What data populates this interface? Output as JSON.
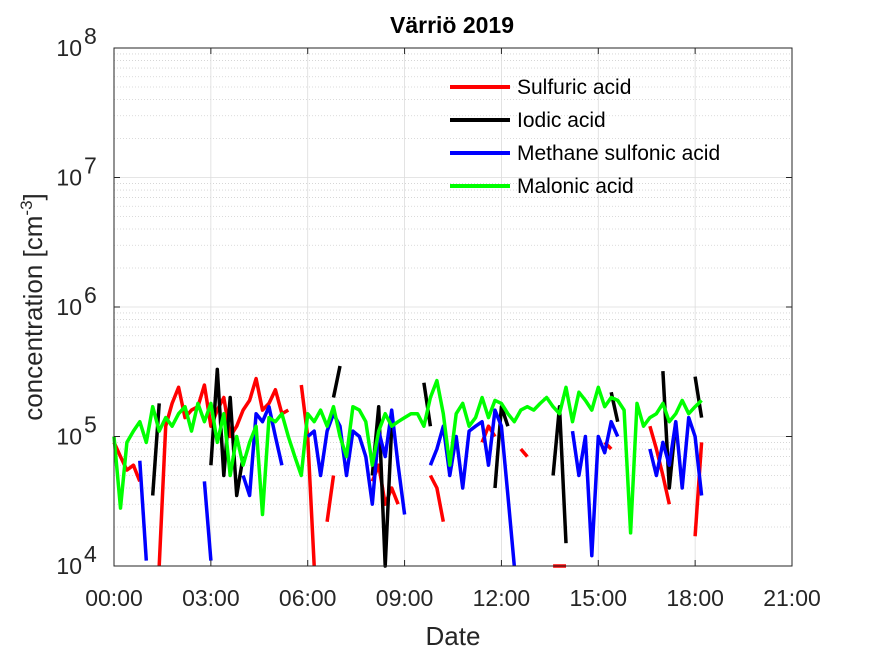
{
  "chart_data": {
    "type": "line",
    "title": "Värriö 2019",
    "xlabel": "Date",
    "ylabel_main": "concentration [cm",
    "ylabel_sup": "-3",
    "ylabel_close": "]",
    "y_scale": "log",
    "xlim": [
      0,
      21
    ],
    "ylim": [
      10000,
      100000000
    ],
    "grid": true,
    "minor_grid": true,
    "legend_position": "top-right",
    "x_ticks": [
      {
        "value": 0,
        "label": "00:00"
      },
      {
        "value": 3,
        "label": "03:00"
      },
      {
        "value": 6,
        "label": "06:00"
      },
      {
        "value": 9,
        "label": "09:00"
      },
      {
        "value": 12,
        "label": "12:00"
      },
      {
        "value": 15,
        "label": "15:00"
      },
      {
        "value": 18,
        "label": "18:00"
      },
      {
        "value": 21,
        "label": "21:00"
      }
    ],
    "y_ticks": [
      {
        "exp": 4,
        "base": "10",
        "sup": "4"
      },
      {
        "exp": 5,
        "base": "10",
        "sup": "5"
      },
      {
        "exp": 6,
        "base": "10",
        "sup": "6"
      },
      {
        "exp": 7,
        "base": "10",
        "sup": "7"
      },
      {
        "exp": 8,
        "base": "10",
        "sup": "8"
      }
    ],
    "series": [
      {
        "name": "Sulfuric acid",
        "color": "#ff0000",
        "x": [
          0.0,
          0.2,
          0.4,
          0.6,
          0.8,
          1.0,
          1.2,
          1.4,
          1.6,
          1.8,
          2.0,
          2.2,
          2.4,
          2.6,
          2.8,
          3.0,
          3.2,
          3.4,
          3.6,
          3.8,
          4.0,
          4.2,
          4.4,
          4.6,
          4.8,
          5.0,
          5.2,
          5.4,
          5.6,
          5.8,
          6.0,
          6.2,
          6.4,
          6.6,
          6.8,
          7.0,
          7.2,
          7.4,
          7.6,
          7.8,
          8.0,
          8.2,
          8.4,
          8.6,
          8.8,
          9.0,
          9.2,
          9.4,
          9.6,
          9.8,
          10.0,
          10.2,
          10.4,
          10.6,
          10.8,
          11.0,
          11.2,
          11.4,
          11.6,
          11.8,
          12.0,
          12.2,
          12.4,
          12.6,
          12.8,
          13.0,
          13.2,
          13.4,
          13.6,
          13.8,
          14.0,
          14.2,
          14.4,
          14.6,
          14.8,
          15.0,
          15.2,
          15.4,
          15.6,
          15.8,
          16.0,
          16.2,
          16.4,
          16.6,
          16.8,
          17.0,
          17.2,
          17.4,
          17.6,
          17.8,
          18.0,
          18.2
        ],
        "y": [
          90000,
          70000,
          55000,
          60000,
          45000,
          null,
          null,
          9000,
          120000,
          180000,
          240000,
          140000,
          160000,
          170000,
          250000,
          120000,
          160000,
          200000,
          100000,
          120000,
          160000,
          190000,
          280000,
          160000,
          180000,
          230000,
          150000,
          160000,
          null,
          250000,
          100000,
          8000,
          null,
          22000,
          50000,
          null,
          null,
          null,
          null,
          null,
          45000,
          60000,
          30000,
          40000,
          30000,
          null,
          null,
          null,
          null,
          50000,
          40000,
          22000,
          null,
          null,
          null,
          null,
          null,
          90000,
          120000,
          100000,
          null,
          null,
          null,
          80000,
          70000,
          null,
          null,
          null,
          10000,
          9000,
          6000,
          null,
          null,
          null,
          null,
          null,
          90000,
          80000,
          null,
          null,
          null,
          null,
          null,
          120000,
          80000,
          50000,
          30000,
          null,
          null,
          null,
          17000,
          90000
        ]
      },
      {
        "name": "Iodic acid",
        "color": "#000000",
        "x": [
          0.0,
          0.2,
          0.4,
          0.6,
          0.8,
          1.0,
          1.2,
          1.4,
          1.6,
          1.8,
          2.0,
          2.2,
          2.4,
          2.6,
          2.8,
          3.0,
          3.2,
          3.4,
          3.6,
          3.8,
          4.0,
          4.2,
          4.4,
          4.6,
          4.8,
          5.0,
          5.2,
          5.4,
          5.6,
          5.8,
          6.0,
          6.2,
          6.4,
          6.6,
          6.8,
          7.0,
          7.2,
          7.4,
          7.6,
          7.8,
          8.0,
          8.2,
          8.4,
          8.6,
          8.8,
          9.0,
          9.2,
          9.4,
          9.6,
          9.8,
          10.0,
          10.2,
          10.4,
          10.6,
          10.8,
          11.0,
          11.2,
          11.4,
          11.6,
          11.8,
          12.0,
          12.2,
          12.4,
          12.6,
          12.8,
          13.0,
          13.2,
          13.4,
          13.6,
          13.8,
          14.0,
          14.2,
          14.4,
          14.6,
          14.8,
          15.0,
          15.2,
          15.4,
          15.6,
          15.8,
          16.0,
          16.2,
          16.4,
          16.6,
          16.8,
          17.0,
          17.2,
          17.4,
          17.6,
          17.8,
          18.0,
          18.2
        ],
        "y": [
          null,
          null,
          null,
          null,
          null,
          null,
          35000,
          180000,
          null,
          null,
          null,
          null,
          null,
          null,
          null,
          60000,
          330000,
          50000,
          200000,
          35000,
          70000,
          null,
          null,
          null,
          null,
          null,
          null,
          null,
          null,
          null,
          null,
          null,
          null,
          null,
          200000,
          350000,
          null,
          null,
          null,
          null,
          50000,
          170000,
          8000,
          120000,
          null,
          null,
          null,
          null,
          260000,
          120000,
          null,
          null,
          null,
          null,
          null,
          null,
          null,
          null,
          null,
          40000,
          170000,
          120000,
          null,
          null,
          null,
          null,
          null,
          null,
          50000,
          170000,
          15000,
          null,
          null,
          null,
          null,
          null,
          null,
          220000,
          130000,
          null,
          null,
          null,
          null,
          null,
          null,
          320000,
          40000,
          130000,
          null,
          null,
          290000,
          140000
        ]
      },
      {
        "name": "Methane sulfonic acid",
        "color": "#0000ff",
        "x": [
          0.0,
          0.2,
          0.4,
          0.6,
          0.8,
          1.0,
          1.2,
          1.4,
          1.6,
          1.8,
          2.0,
          2.2,
          2.4,
          2.6,
          2.8,
          3.0,
          3.2,
          3.4,
          3.6,
          3.8,
          4.0,
          4.2,
          4.4,
          4.6,
          4.8,
          5.0,
          5.2,
          5.4,
          5.6,
          5.8,
          6.0,
          6.2,
          6.4,
          6.6,
          6.8,
          7.0,
          7.2,
          7.4,
          7.6,
          7.8,
          8.0,
          8.2,
          8.4,
          8.6,
          8.8,
          9.0,
          9.2,
          9.4,
          9.6,
          9.8,
          10.0,
          10.2,
          10.4,
          10.6,
          10.8,
          11.0,
          11.2,
          11.4,
          11.6,
          11.8,
          12.0,
          12.2,
          12.4,
          12.6,
          12.8,
          13.0,
          13.2,
          13.4,
          13.6,
          13.8,
          14.0,
          14.2,
          14.4,
          14.6,
          14.8,
          15.0,
          15.2,
          15.4,
          15.6,
          15.8,
          16.0,
          16.2,
          16.4,
          16.6,
          16.8,
          17.0,
          17.2,
          17.4,
          17.6,
          17.8,
          18.0,
          18.2
        ],
        "y": [
          null,
          null,
          null,
          null,
          65000,
          11000,
          null,
          null,
          null,
          null,
          null,
          null,
          null,
          null,
          45000,
          11000,
          null,
          null,
          null,
          null,
          50000,
          35000,
          150000,
          130000,
          170000,
          100000,
          60000,
          null,
          null,
          null,
          100000,
          110000,
          50000,
          110000,
          150000,
          120000,
          50000,
          110000,
          100000,
          70000,
          30000,
          110000,
          70000,
          160000,
          60000,
          25000,
          null,
          null,
          null,
          60000,
          80000,
          120000,
          50000,
          100000,
          40000,
          110000,
          120000,
          130000,
          60000,
          160000,
          120000,
          35000,
          10000,
          null,
          null,
          null,
          null,
          null,
          null,
          null,
          null,
          110000,
          50000,
          100000,
          12000,
          100000,
          75000,
          130000,
          100000,
          null,
          null,
          null,
          null,
          80000,
          50000,
          90000,
          60000,
          130000,
          40000,
          140000,
          100000,
          35000
        ]
      },
      {
        "name": "Malonic acid",
        "color": "#00ff00",
        "x": [
          0.0,
          0.2,
          0.4,
          0.6,
          0.8,
          1.0,
          1.2,
          1.4,
          1.6,
          1.8,
          2.0,
          2.2,
          2.4,
          2.6,
          2.8,
          3.0,
          3.2,
          3.4,
          3.6,
          3.8,
          4.0,
          4.2,
          4.4,
          4.6,
          4.8,
          5.0,
          5.2,
          5.4,
          5.6,
          5.8,
          6.0,
          6.2,
          6.4,
          6.6,
          6.8,
          7.0,
          7.2,
          7.4,
          7.6,
          7.8,
          8.0,
          8.2,
          8.4,
          8.6,
          8.8,
          9.0,
          9.2,
          9.4,
          9.6,
          9.8,
          10.0,
          10.2,
          10.4,
          10.6,
          10.8,
          11.0,
          11.2,
          11.4,
          11.6,
          11.8,
          12.0,
          12.2,
          12.4,
          12.6,
          12.8,
          13.0,
          13.2,
          13.4,
          13.6,
          13.8,
          14.0,
          14.2,
          14.4,
          14.6,
          14.8,
          15.0,
          15.2,
          15.4,
          15.6,
          15.8,
          16.0,
          16.2,
          16.4,
          16.6,
          16.8,
          17.0,
          17.2,
          17.4,
          17.6,
          17.8,
          18.0,
          18.2
        ],
        "y": [
          100000,
          28000,
          90000,
          110000,
          130000,
          90000,
          170000,
          110000,
          140000,
          120000,
          150000,
          170000,
          110000,
          180000,
          130000,
          180000,
          90000,
          150000,
          50000,
          100000,
          60000,
          90000,
          120000,
          25000,
          140000,
          130000,
          150000,
          100000,
          70000,
          50000,
          150000,
          130000,
          160000,
          120000,
          170000,
          100000,
          70000,
          170000,
          160000,
          130000,
          60000,
          110000,
          150000,
          120000,
          130000,
          140000,
          150000,
          150000,
          120000,
          200000,
          270000,
          150000,
          60000,
          150000,
          180000,
          120000,
          140000,
          200000,
          140000,
          190000,
          180000,
          150000,
          130000,
          160000,
          170000,
          160000,
          180000,
          200000,
          170000,
          150000,
          240000,
          130000,
          220000,
          190000,
          160000,
          240000,
          170000,
          200000,
          190000,
          160000,
          18000,
          180000,
          120000,
          140000,
          150000,
          180000,
          130000,
          150000,
          190000,
          150000,
          170000,
          190000
        ]
      }
    ]
  }
}
